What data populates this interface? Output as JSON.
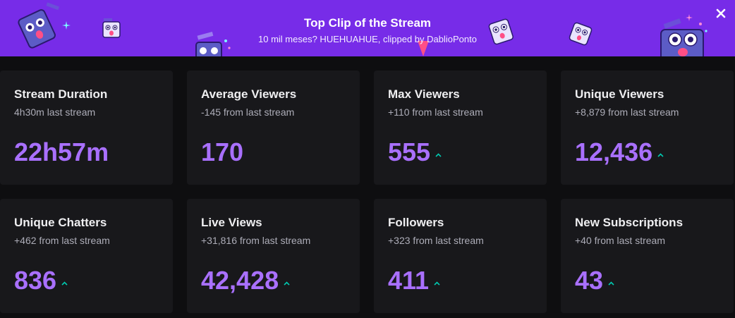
{
  "banner": {
    "title": "Top Clip of the Stream",
    "subtitle": "10 mil meses? HUEHUAHUE, clipped by DablioPonto",
    "background": "#772ce8",
    "close_icon": "close-icon"
  },
  "stats": [
    {
      "title": "Stream Duration",
      "change": "4h30m last stream",
      "value": "22h57m",
      "trend": ""
    },
    {
      "title": "Average Viewers",
      "change": "-145 from last stream",
      "value": "170",
      "trend": ""
    },
    {
      "title": "Max Viewers",
      "change": "+110 from last stream",
      "value": "555",
      "trend": "up"
    },
    {
      "title": "Unique Viewers",
      "change": "+8,879 from last stream",
      "value": "12,436",
      "trend": "up"
    },
    {
      "title": "Unique Chatters",
      "change": "+462 from last stream",
      "value": "836",
      "trend": "up"
    },
    {
      "title": "Live Views",
      "change": "+31,816 from last stream",
      "value": "42,428",
      "trend": "up"
    },
    {
      "title": "Followers",
      "change": "+323 from last stream",
      "value": "411",
      "trend": "up"
    },
    {
      "title": "New Subscriptions",
      "change": "+40 from last stream",
      "value": "43",
      "trend": "up"
    }
  ],
  "colors": {
    "page_bg": "#0e0e10",
    "card_bg": "#18181b",
    "value": "#a970ff",
    "trend_up": "#00c8af",
    "title": "#efeff1",
    "subtitle": "#adadb8"
  },
  "icons": {
    "trend_up": "trend-up-icon"
  }
}
